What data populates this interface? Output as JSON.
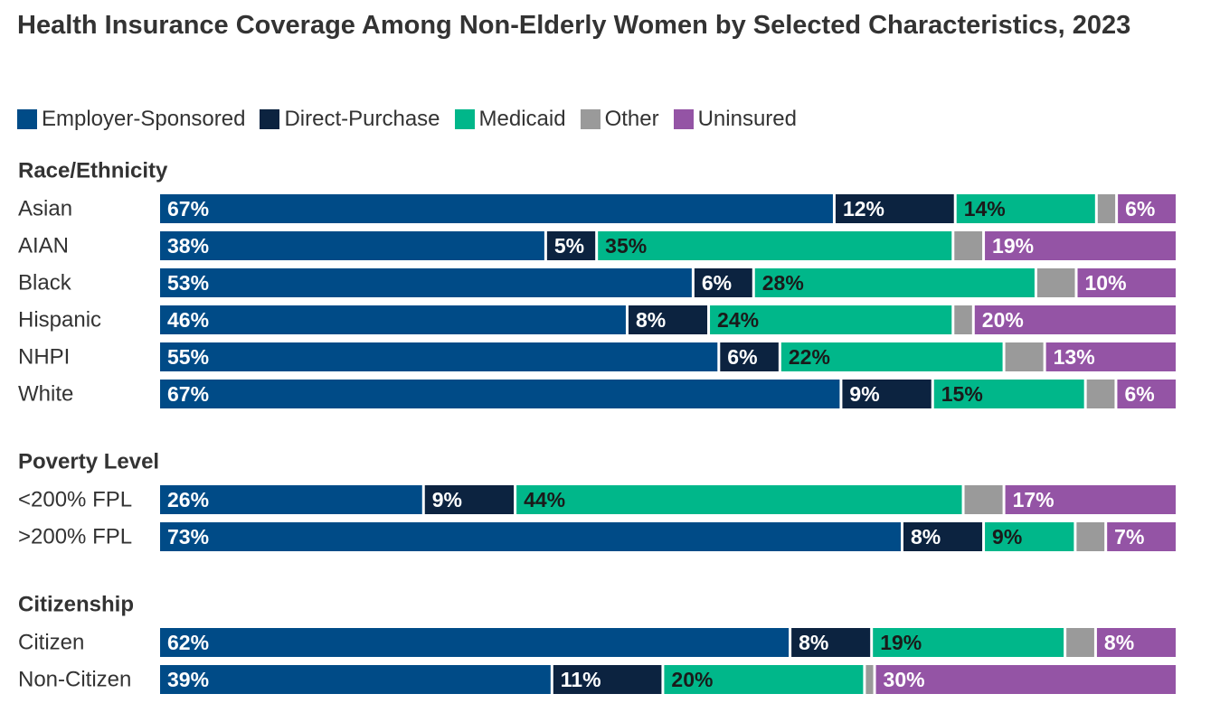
{
  "chart_data": {
    "type": "bar",
    "orientation": "horizontal",
    "stacked": true,
    "title": "Health Insurance Coverage Among Non-Elderly Women by Selected Characteristics, 2023",
    "xlim": [
      0,
      100
    ],
    "legend_position": "top",
    "series": [
      {
        "name": "Employer-Sponsored",
        "color": "#004b87",
        "label_color": "#ffffff"
      },
      {
        "name": "Direct-Purchase",
        "color": "#0c2340",
        "label_color": "#ffffff"
      },
      {
        "name": "Medicaid",
        "color": "#00b78a",
        "label_color": "#1a1a1a"
      },
      {
        "name": "Other",
        "color": "#9a9a9a",
        "label_color": "#1a1a1a"
      },
      {
        "name": "Uninsured",
        "color": "#9454a5",
        "label_color": "#ffffff"
      }
    ],
    "groups": [
      {
        "name": "Race/Ethnicity",
        "rows": [
          {
            "label": "Asian",
            "values": [
              67,
              12,
              14,
              2,
              6
            ],
            "labels": [
              "67%",
              "12%",
              "14%",
              "",
              "6%"
            ]
          },
          {
            "label": "AIAN",
            "values": [
              38,
              5,
              35,
              3,
              19
            ],
            "labels": [
              "38%",
              "5%",
              "35%",
              "",
              "19%"
            ]
          },
          {
            "label": "Black",
            "values": [
              53,
              6,
              28,
              4,
              10
            ],
            "labels": [
              "53%",
              "6%",
              "28%",
              "",
              "10%"
            ]
          },
          {
            "label": "Hispanic",
            "values": [
              46,
              8,
              24,
              2,
              20
            ],
            "labels": [
              "46%",
              "8%",
              "24%",
              "",
              "20%"
            ]
          },
          {
            "label": "NHPI",
            "values": [
              55,
              6,
              22,
              4,
              13
            ],
            "labels": [
              "55%",
              "6%",
              "22%",
              "",
              "13%"
            ]
          },
          {
            "label": "White",
            "values": [
              67,
              9,
              15,
              3,
              6
            ],
            "labels": [
              "67%",
              "9%",
              "15%",
              "",
              "6%"
            ]
          }
        ]
      },
      {
        "name": "Poverty Level",
        "rows": [
          {
            "label": "<200% FPL",
            "values": [
              26,
              9,
              44,
              4,
              17
            ],
            "labels": [
              "26%",
              "9%",
              "44%",
              "",
              "17%"
            ]
          },
          {
            "label": ">200% FPL",
            "values": [
              73,
              8,
              9,
              3,
              7
            ],
            "labels": [
              "73%",
              "8%",
              "9%",
              "",
              "7%"
            ]
          }
        ]
      },
      {
        "name": "Citizenship",
        "rows": [
          {
            "label": "Citizen",
            "values": [
              62,
              8,
              19,
              3,
              8
            ],
            "labels": [
              "62%",
              "8%",
              "19%",
              "",
              "8%"
            ]
          },
          {
            "label": "Non-Citizen",
            "values": [
              39,
              11,
              20,
              1,
              30
            ],
            "labels": [
              "39%",
              "11%",
              "20%",
              "",
              "30%"
            ]
          }
        ]
      }
    ]
  }
}
